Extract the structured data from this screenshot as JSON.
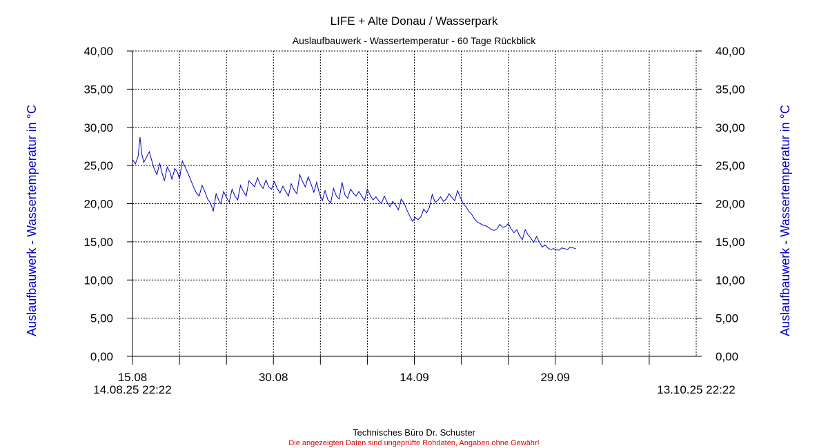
{
  "chart_data": {
    "type": "line",
    "title": "LIFE + Alte Donau / Wasserpark",
    "subtitle": "Auslaufbauwerk - Wassertemperatur - 60 Tage Rückblick",
    "ylabel_left": "Auslaufbauwerk - Wassertemperatur in °C",
    "ylabel_right": "Auslaufbauwerk - Wassertemperatur in °C",
    "ylim": [
      0,
      40
    ],
    "y_ticks": [
      "0,00",
      "5,00",
      "10,00",
      "15,00",
      "20,00",
      "25,00",
      "30,00",
      "35,00",
      "40,00"
    ],
    "xlim": [
      0,
      60
    ],
    "x_tick_labels": [
      {
        "day": 0,
        "label": "15.08"
      },
      {
        "day": 15,
        "label": "30.08"
      },
      {
        "day": 30,
        "label": "14.09"
      },
      {
        "day": 45,
        "label": "29.09"
      }
    ],
    "x_range_start_label": "14.08.25 22:22",
    "x_range_end_label": "13.10.25 22:22",
    "grid": true,
    "line_color": "#0000c0",
    "series": [
      {
        "x": [
          0.0,
          0.3,
          0.6,
          0.8,
          1.0,
          1.2,
          1.5,
          1.8,
          2.0,
          2.3,
          2.6,
          2.9,
          3.1,
          3.4,
          3.7,
          4.0,
          4.2,
          4.5,
          4.8,
          5.0,
          5.3,
          5.6,
          5.9,
          6.2,
          6.5,
          6.8,
          7.1,
          7.4,
          7.7,
          8.0,
          8.3,
          8.6,
          8.9,
          9.2,
          9.4,
          9.7,
          10.0,
          10.3,
          10.6,
          10.9,
          11.2,
          11.5,
          11.8,
          12.1,
          12.4,
          12.7,
          13.0,
          13.3,
          13.6,
          13.9,
          14.2,
          14.5,
          14.8,
          15.1,
          15.4,
          15.7,
          16.0,
          16.3,
          16.6,
          16.9,
          17.2,
          17.5,
          17.8,
          18.1,
          18.4,
          18.7,
          19.0,
          19.3,
          19.6,
          19.9,
          20.2,
          20.5,
          20.8,
          21.1,
          21.4,
          21.7,
          22.0,
          22.3,
          22.6,
          22.9,
          23.2,
          23.5,
          23.8,
          24.1,
          24.4,
          24.7,
          25.0,
          25.3,
          25.6,
          25.9,
          26.2,
          26.5,
          26.8,
          27.1,
          27.4,
          27.7,
          28.0,
          28.3,
          28.6,
          28.9,
          29.2,
          29.5,
          29.8,
          30.1,
          30.4,
          30.7,
          31.0,
          31.3,
          31.6,
          31.9,
          32.2,
          32.5,
          32.8,
          33.1,
          33.4,
          33.7,
          34.0,
          34.3,
          34.6,
          34.9,
          35.2,
          35.5,
          35.8,
          36.1,
          36.4,
          36.7,
          37.0,
          37.3,
          37.6,
          37.9,
          38.2,
          38.5,
          38.8,
          39.1,
          39.4,
          39.7,
          40.0,
          40.3,
          40.6,
          40.9,
          41.2,
          41.5,
          41.8,
          42.1,
          42.4,
          42.7,
          43.0,
          43.3,
          43.6,
          43.9,
          44.2,
          44.5,
          44.8,
          45.1,
          45.4,
          45.7,
          46.0,
          46.3,
          46.6,
          46.9,
          47.2
        ],
        "values": [
          25.8,
          25.2,
          26.2,
          28.7,
          26.5,
          25.4,
          26.1,
          26.8,
          25.9,
          24.6,
          23.8,
          25.3,
          24.2,
          23.0,
          24.8,
          24.1,
          23.2,
          24.6,
          24.1,
          23.2,
          25.6,
          24.8,
          24.0,
          23.1,
          22.2,
          21.4,
          21.0,
          22.4,
          21.6,
          20.6,
          20.1,
          19.0,
          21.3,
          20.4,
          20.0,
          21.6,
          20.8,
          20.2,
          21.9,
          21.0,
          20.5,
          22.4,
          21.6,
          21.0,
          23.0,
          22.6,
          22.2,
          23.4,
          22.5,
          22.0,
          23.1,
          22.2,
          21.9,
          22.9,
          22.0,
          21.4,
          22.3,
          21.6,
          21.0,
          22.6,
          21.8,
          21.3,
          23.8,
          22.9,
          22.2,
          23.5,
          22.6,
          21.5,
          22.8,
          21.3,
          20.4,
          21.7,
          20.5,
          20.1,
          22.0,
          21.0,
          20.6,
          22.8,
          21.2,
          20.7,
          21.9,
          21.4,
          21.0,
          21.6,
          21.0,
          20.4,
          21.9,
          21.1,
          20.5,
          20.9,
          20.4,
          20.0,
          21.0,
          20.2,
          19.6,
          20.3,
          19.8,
          19.2,
          20.6,
          20.1,
          19.2,
          18.4,
          17.7,
          18.2,
          17.9,
          18.3,
          19.3,
          18.8,
          19.5,
          21.2,
          20.2,
          20.4,
          20.9,
          20.3,
          20.6,
          21.3,
          20.8,
          20.4,
          21.7,
          20.8,
          20.0,
          19.6,
          19.0,
          18.6,
          18.0,
          17.6,
          17.4,
          17.2,
          17.1,
          16.9,
          16.6,
          16.5,
          16.7,
          17.3,
          16.9,
          17.0,
          17.4,
          16.7,
          16.2,
          16.6,
          15.8,
          15.3,
          16.6,
          15.9,
          15.5,
          14.9,
          15.7,
          15.0,
          14.3,
          14.6,
          14.2,
          14.0,
          14.1,
          14.0,
          13.9,
          14.2,
          14.1,
          14.0,
          14.3,
          14.2,
          14.1
        ]
      }
    ]
  },
  "footer": {
    "company": "Technisches Büro Dr. Schuster",
    "disclaimer": "Die angezeigten Daten sind ungeprüfte Rohdaten, Angaben ohne Gewähr!"
  }
}
